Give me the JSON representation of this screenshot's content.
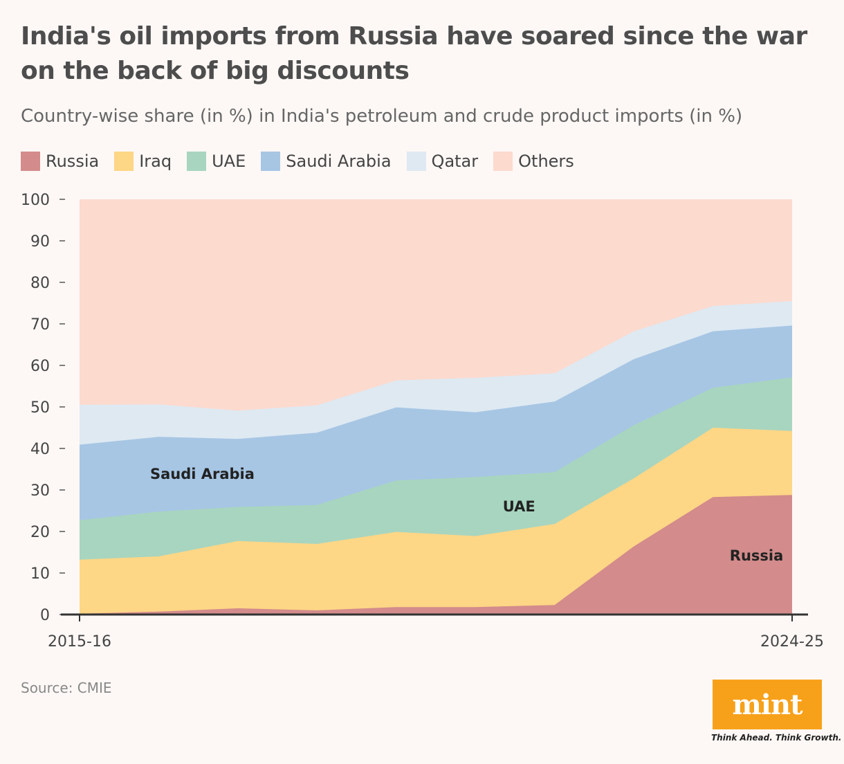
{
  "title": "India's oil imports from Russia have soared since the war on the back of big discounts",
  "subtitle": "Country-wise share (in %) in India's petroleum and crude product imports (in %)",
  "source": "Source: CMIE",
  "logo": {
    "text": "mint",
    "tagline": "Think Ahead. Think Growth."
  },
  "colors": {
    "Russia": "#d38b8b",
    "Iraq": "#fdd686",
    "UAE": "#a8d5bf",
    "Saudi Arabia": "#a7c6e4",
    "Qatar": "#dee9f2",
    "Others": "#fcdace",
    "axis": "#333333",
    "tick_text": "#444444"
  },
  "chart_data": {
    "type": "area",
    "stacked": true,
    "title": "India's oil imports from Russia have soared since the war on the back of big discounts",
    "ylabel": "",
    "xlabel": "",
    "ylim": [
      0,
      100
    ],
    "yticks": [
      0,
      10,
      20,
      30,
      40,
      50,
      60,
      70,
      80,
      90,
      100
    ],
    "x": [
      "2015-16",
      "2016-17",
      "2017-18",
      "2018-19",
      "2019-20",
      "2020-21",
      "2021-22",
      "2022-23",
      "2023-24",
      "2024-25"
    ],
    "x_tick_labels_shown": [
      "2015-16",
      "2024-25"
    ],
    "legend_position": "top-left",
    "series": [
      {
        "name": "Russia",
        "values": [
          0.2,
          0.7,
          1.5,
          1.0,
          1.8,
          1.8,
          2.3,
          16.4,
          28.3,
          28.8
        ]
      },
      {
        "name": "Iraq",
        "values": [
          13.0,
          13.3,
          16.2,
          16.0,
          18.1,
          17.1,
          19.5,
          16.4,
          16.7,
          15.4
        ]
      },
      {
        "name": "UAE",
        "values": [
          9.5,
          10.8,
          8.2,
          9.4,
          12.4,
          14.2,
          12.5,
          12.8,
          9.6,
          12.9
        ]
      },
      {
        "name": "Saudi Arabia",
        "values": [
          18.2,
          18.0,
          16.4,
          17.4,
          17.6,
          15.6,
          17.0,
          15.9,
          13.6,
          12.5
        ]
      },
      {
        "name": "Qatar",
        "values": [
          9.6,
          7.8,
          6.8,
          6.6,
          6.5,
          8.3,
          6.8,
          6.7,
          6.1,
          5.9
        ]
      },
      {
        "name": "Others",
        "values": [
          49.5,
          49.4,
          50.9,
          49.6,
          43.6,
          43.0,
          41.9,
          31.8,
          25.7,
          24.5
        ]
      }
    ],
    "annotations": [
      {
        "text": "Saudi Arabia",
        "series": "Saudi Arabia",
        "at_x": "2016-17"
      },
      {
        "text": "UAE",
        "series": "UAE",
        "at_x": "2020-21"
      },
      {
        "text": "Russia",
        "series": "Russia",
        "at_x": "2023-24"
      }
    ]
  }
}
